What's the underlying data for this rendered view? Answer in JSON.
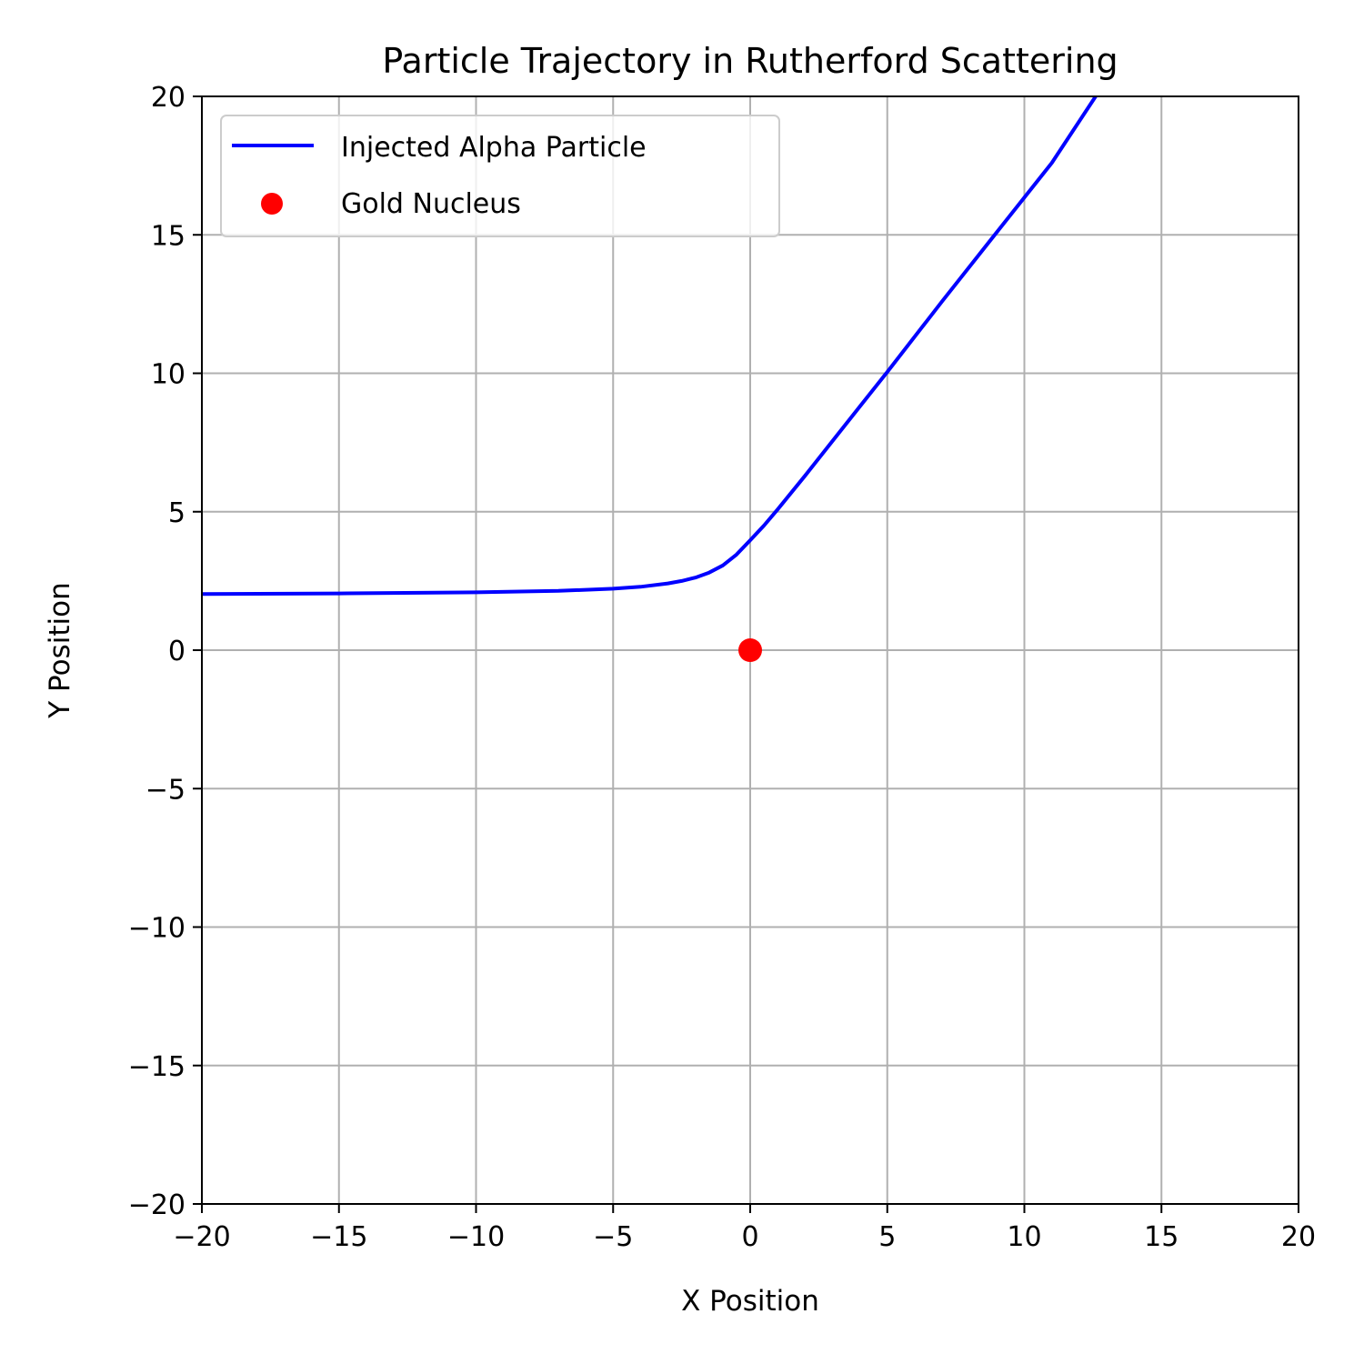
{
  "chart_data": {
    "type": "line",
    "title": "Particle Trajectory in Rutherford Scattering",
    "xlabel": "X Position",
    "ylabel": "Y Position",
    "xlim": [
      -20,
      20
    ],
    "ylim": [
      -20,
      20
    ],
    "xticks": [
      -20,
      -15,
      -10,
      -5,
      0,
      5,
      10,
      15,
      20
    ],
    "yticks": [
      -20,
      -15,
      -10,
      -5,
      0,
      5,
      10,
      15,
      20
    ],
    "xtick_labels": [
      "−20",
      "−15",
      "−10",
      "−5",
      "0",
      "5",
      "10",
      "15",
      "20"
    ],
    "ytick_labels": [
      "−20",
      "−15",
      "−10",
      "−5",
      "0",
      "5",
      "10",
      "15",
      "20"
    ],
    "grid": true,
    "legend_position": "top-left",
    "series": [
      {
        "name": "Injected Alpha Particle",
        "kind": "line",
        "color": "#0000ff",
        "x": [
          -20,
          -15,
          -10,
          -7,
          -5,
          -4,
          -3,
          -2.5,
          -2,
          -1.5,
          -1,
          -0.5,
          0,
          0.5,
          1,
          2,
          3,
          4,
          5,
          7,
          9,
          11,
          12.6
        ],
        "y": [
          2.03,
          2.05,
          2.09,
          2.14,
          2.22,
          2.29,
          2.41,
          2.5,
          2.62,
          2.8,
          3.06,
          3.45,
          3.97,
          4.5,
          5.08,
          6.3,
          7.55,
          8.8,
          10.05,
          12.6,
          15.1,
          17.6,
          20
        ]
      },
      {
        "name": "Gold Nucleus",
        "kind": "scatter",
        "color": "#ff0000",
        "x": [
          0
        ],
        "y": [
          0
        ]
      }
    ]
  }
}
